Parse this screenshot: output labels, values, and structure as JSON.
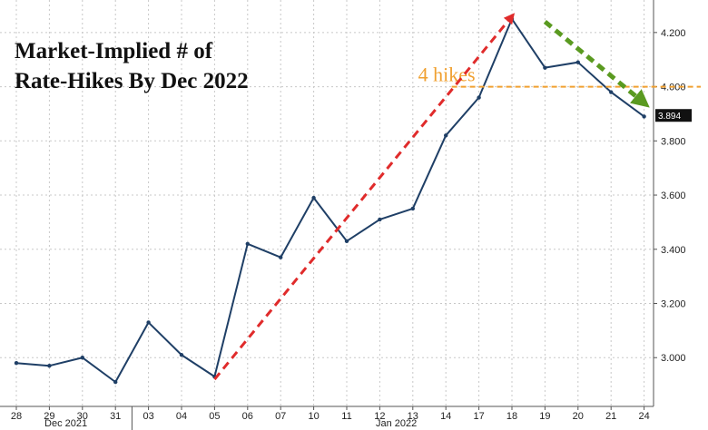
{
  "chart_data": {
    "type": "line",
    "title_lines": [
      "Market-Implied # of",
      "Rate-Hikes By Dec 2022"
    ],
    "y_ticks": [
      "3.000",
      "3.200",
      "3.400",
      "3.600",
      "3.800",
      "4.000",
      "4.200"
    ],
    "ylim": [
      2.82,
      4.32
    ],
    "x_days": [
      "28",
      "29",
      "30",
      "31",
      "03",
      "04",
      "05",
      "06",
      "07",
      "10",
      "11",
      "12",
      "13",
      "14",
      "17",
      "18",
      "19",
      "20",
      "21",
      "24"
    ],
    "months": [
      "Dec 2021",
      "Jan 2022"
    ],
    "grid": true,
    "last_value": 3.894,
    "last_value_label": "3.894",
    "reference_line": {
      "value": 4.0,
      "label": "4 hikes",
      "color": "#f0a030"
    },
    "trend_lines": [
      {
        "from": [
          "05",
          2.92
        ],
        "to": [
          "18",
          4.26
        ],
        "color": "#e02b2b"
      },
      {
        "from": [
          "19",
          4.24
        ],
        "to": [
          "24",
          3.94
        ],
        "color": "#5a9a20"
      }
    ],
    "series": [
      {
        "color": "#1f3f66",
        "points": [
          [
            "28",
            2.98
          ],
          [
            "29",
            2.97
          ],
          [
            "30",
            3.0
          ],
          [
            "31",
            2.91
          ],
          [
            "03",
            3.13
          ],
          [
            "04",
            3.01
          ],
          [
            "05",
            2.93
          ],
          [
            "06",
            3.42
          ],
          [
            "07",
            3.37
          ],
          [
            "10",
            3.59
          ],
          [
            "11",
            3.43
          ],
          [
            "12",
            3.51
          ],
          [
            "13",
            3.55
          ],
          [
            "14",
            3.82
          ],
          [
            "17",
            3.96
          ],
          [
            "18",
            4.25
          ],
          [
            "19",
            4.07
          ],
          [
            "20",
            4.09
          ],
          [
            "21",
            3.98
          ],
          [
            "24",
            3.89
          ]
        ]
      }
    ]
  }
}
